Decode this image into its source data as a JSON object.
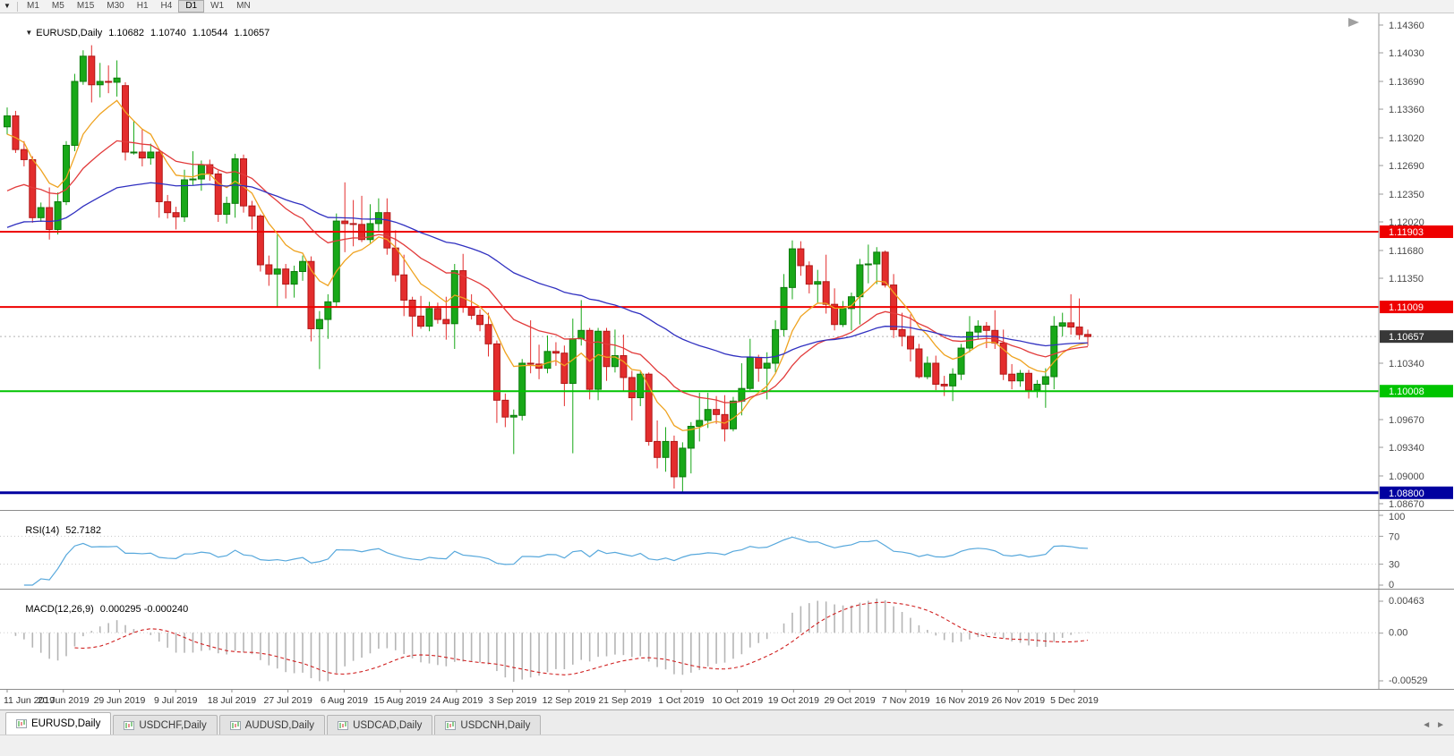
{
  "toolbar": {
    "menu_icon": "▼",
    "timeframes": [
      "M1",
      "M5",
      "M15",
      "M30",
      "H1",
      "H4",
      "D1",
      "W1",
      "MN"
    ],
    "active_timeframe": "D1"
  },
  "chart_header": {
    "dropdown_icon": "▼",
    "symbol_period": "EURUSD,Daily",
    "open": "1.10682",
    "high": "1.10740",
    "low": "1.10544",
    "close": "1.10657"
  },
  "price_axis": {
    "ticks": [
      "1.14360",
      "1.14030",
      "1.13690",
      "1.13360",
      "1.13020",
      "1.12690",
      "1.12350",
      "1.12020",
      "1.11680",
      "1.11350",
      "1.10340",
      "1.09670",
      "1.09340",
      "1.09000",
      "1.08670"
    ],
    "badges": [
      {
        "text": "1.11903",
        "value": 1.11903,
        "bg": "#ee0000"
      },
      {
        "text": "1.11009",
        "value": 1.11009,
        "bg": "#ee0000"
      },
      {
        "text": "1.10657",
        "value": 1.10657,
        "bg": "#383838"
      },
      {
        "text": "1.10008",
        "value": 1.10008,
        "bg": "#00c400"
      },
      {
        "text": "1.08800",
        "value": 1.088,
        "bg": "#0000a0"
      }
    ]
  },
  "chart_data": {
    "type": "candlestick",
    "symbol": "EURUSD",
    "timeframe": "Daily",
    "ylim": [
      1.0867,
      1.1436
    ],
    "x_labels": [
      "11 Jun 2019",
      "20 Jun 2019",
      "29 Jun 2019",
      "9 Jul 2019",
      "18 Jul 2019",
      "27 Jul 2019",
      "6 Aug 2019",
      "15 Aug 2019",
      "24 Aug 2019",
      "3 Sep 2019",
      "12 Sep 2019",
      "21 Sep 2019",
      "1 Oct 2019",
      "10 Oct 2019",
      "19 Oct 2019",
      "29 Oct 2019",
      "7 Nov 2019",
      "16 Nov 2019",
      "26 Nov 2019",
      "5 Dec 2019"
    ],
    "candles": [
      [
        1.1315,
        1.1338,
        1.1306,
        1.1328
      ],
      [
        1.1328,
        1.1334,
        1.1284,
        1.1288
      ],
      [
        1.1288,
        1.1298,
        1.1268,
        1.1276
      ],
      [
        1.1276,
        1.128,
        1.1201,
        1.1207
      ],
      [
        1.1207,
        1.1225,
        1.1202,
        1.1219
      ],
      [
        1.1219,
        1.1243,
        1.1181,
        1.1193
      ],
      [
        1.1193,
        1.1237,
        1.1187,
        1.1226
      ],
      [
        1.1226,
        1.1298,
        1.1222,
        1.1293
      ],
      [
        1.1293,
        1.1378,
        1.1286,
        1.1369
      ],
      [
        1.1369,
        1.1406,
        1.1365,
        1.1399
      ],
      [
        1.1399,
        1.1412,
        1.1344,
        1.1365
      ],
      [
        1.1365,
        1.1391,
        1.135,
        1.1369
      ],
      [
        1.1369,
        1.1388,
        1.1355,
        1.1368
      ],
      [
        1.1368,
        1.1394,
        1.1351,
        1.1373
      ],
      [
        1.1364,
        1.1368,
        1.1275,
        1.1285
      ],
      [
        1.1285,
        1.1322,
        1.1282,
        1.1285
      ],
      [
        1.1285,
        1.1312,
        1.1268,
        1.1278
      ],
      [
        1.1278,
        1.1295,
        1.127,
        1.1285
      ],
      [
        1.1285,
        1.1288,
        1.1207,
        1.1226
      ],
      [
        1.1226,
        1.1234,
        1.1206,
        1.1213
      ],
      [
        1.1213,
        1.122,
        1.1193,
        1.1208
      ],
      [
        1.1208,
        1.1264,
        1.1202,
        1.1252
      ],
      [
        1.1252,
        1.1286,
        1.1246,
        1.1253
      ],
      [
        1.1253,
        1.1275,
        1.1239,
        1.127
      ],
      [
        1.127,
        1.1276,
        1.1251,
        1.1259
      ],
      [
        1.1259,
        1.1263,
        1.1202,
        1.1211
      ],
      [
        1.1211,
        1.1232,
        1.12,
        1.1224
      ],
      [
        1.1224,
        1.1283,
        1.1207,
        1.1277
      ],
      [
        1.1277,
        1.1282,
        1.1213,
        1.1221
      ],
      [
        1.1221,
        1.1227,
        1.1193,
        1.1209
      ],
      [
        1.1209,
        1.1211,
        1.1143,
        1.1151
      ],
      [
        1.1151,
        1.1162,
        1.1126,
        1.114
      ],
      [
        1.114,
        1.1187,
        1.1101,
        1.1146
      ],
      [
        1.1146,
        1.1152,
        1.1111,
        1.1128
      ],
      [
        1.1128,
        1.115,
        1.1112,
        1.1143
      ],
      [
        1.1143,
        1.1162,
        1.1132,
        1.1155
      ],
      [
        1.1155,
        1.1161,
        1.106,
        1.1075
      ],
      [
        1.1075,
        1.1096,
        1.1027,
        1.1086
      ],
      [
        1.1086,
        1.1116,
        1.1063,
        1.1107
      ],
      [
        1.1107,
        1.1212,
        1.1101,
        1.1203
      ],
      [
        1.1203,
        1.1249,
        1.1166,
        1.12
      ],
      [
        1.12,
        1.1228,
        1.1173,
        1.1199
      ],
      [
        1.1199,
        1.1233,
        1.1178,
        1.1181
      ],
      [
        1.1181,
        1.1223,
        1.1177,
        1.12
      ],
      [
        1.12,
        1.123,
        1.119,
        1.1213
      ],
      [
        1.1213,
        1.123,
        1.1163,
        1.1171
      ],
      [
        1.1171,
        1.1192,
        1.1131,
        1.1139
      ],
      [
        1.1139,
        1.1163,
        1.109,
        1.1109
      ],
      [
        1.1109,
        1.1113,
        1.1066,
        1.109
      ],
      [
        1.109,
        1.1114,
        1.1075,
        1.1078
      ],
      [
        1.1078,
        1.1107,
        1.1072,
        1.1099
      ],
      [
        1.1099,
        1.1106,
        1.1081,
        1.1086
      ],
      [
        1.1086,
        1.1113,
        1.1062,
        1.1081
      ],
      [
        1.1081,
        1.1152,
        1.1051,
        1.1144
      ],
      [
        1.1144,
        1.1164,
        1.1094,
        1.1101
      ],
      [
        1.1101,
        1.1116,
        1.1086,
        1.1091
      ],
      [
        1.1091,
        1.1098,
        1.1072,
        1.108
      ],
      [
        1.108,
        1.1094,
        1.1042,
        1.1057
      ],
      [
        1.1057,
        1.1061,
        1.0963,
        1.099
      ],
      [
        1.099,
        1.0998,
        1.0958,
        1.097
      ],
      [
        1.097,
        1.0979,
        1.0926,
        1.0972
      ],
      [
        1.0972,
        1.1039,
        1.0966,
        1.1034
      ],
      [
        1.1034,
        1.1085,
        1.1022,
        1.1033
      ],
      [
        1.1033,
        1.1056,
        1.1015,
        1.1028
      ],
      [
        1.1028,
        1.1067,
        1.1022,
        1.1048
      ],
      [
        1.1048,
        1.1059,
        1.1031,
        1.1046
      ],
      [
        1.1046,
        1.1055,
        1.0983,
        1.101
      ],
      [
        1.101,
        1.1087,
        1.0927,
        1.1063
      ],
      [
        1.1063,
        1.1109,
        1.1055,
        1.1073
      ],
      [
        1.1073,
        1.1076,
        1.0991,
        1.1003
      ],
      [
        1.1003,
        1.1076,
        1.099,
        1.1072
      ],
      [
        1.1072,
        1.1076,
        1.1013,
        1.103
      ],
      [
        1.103,
        1.1074,
        1.1023,
        1.1043
      ],
      [
        1.1043,
        1.1068,
        1.1,
        1.1017
      ],
      [
        1.1017,
        1.1025,
        1.0966,
        1.0993
      ],
      [
        1.0993,
        1.1024,
        1.0983,
        1.1021
      ],
      [
        1.1021,
        1.1023,
        1.0936,
        1.0941
      ],
      [
        1.0941,
        1.0966,
        1.0909,
        1.0922
      ],
      [
        1.0922,
        1.0958,
        1.0905,
        1.0941
      ],
      [
        1.0941,
        1.0948,
        1.0885,
        1.0899
      ],
      [
        1.0899,
        1.094,
        1.0879,
        1.0933
      ],
      [
        1.0933,
        1.0964,
        1.0903,
        1.0959
      ],
      [
        1.0959,
        1.0999,
        1.0941,
        1.0966
      ],
      [
        1.0966,
        1.0999,
        1.0957,
        1.0979
      ],
      [
        1.0979,
        1.0995,
        1.0962,
        1.0973
      ],
      [
        1.0973,
        1.0996,
        1.0941,
        1.0956
      ],
      [
        1.0956,
        1.0994,
        1.0953,
        1.0989
      ],
      [
        1.0989,
        1.1034,
        1.0972,
        1.1004
      ],
      [
        1.1004,
        1.1063,
        1.1002,
        1.1041
      ],
      [
        1.1041,
        1.1044,
        1.1012,
        1.1028
      ],
      [
        1.1028,
        1.1047,
        1.0991,
        1.1034
      ],
      [
        1.1034,
        1.1085,
        1.1023,
        1.1074
      ],
      [
        1.1074,
        1.114,
        1.1066,
        1.1124
      ],
      [
        1.1124,
        1.118,
        1.111,
        1.117
      ],
      [
        1.117,
        1.1179,
        1.1138,
        1.115
      ],
      [
        1.115,
        1.1155,
        1.1117,
        1.1128
      ],
      [
        1.1128,
        1.1145,
        1.1106,
        1.1131
      ],
      [
        1.1131,
        1.1163,
        1.1093,
        1.1104
      ],
      [
        1.1104,
        1.1123,
        1.1073,
        1.108
      ],
      [
        1.108,
        1.1108,
        1.1077,
        1.1099
      ],
      [
        1.1099,
        1.1118,
        1.1073,
        1.1113
      ],
      [
        1.1113,
        1.1158,
        1.108,
        1.1151
      ],
      [
        1.1151,
        1.1175,
        1.1129,
        1.1152
      ],
      [
        1.1152,
        1.1172,
        1.1128,
        1.1166
      ],
      [
        1.1166,
        1.1168,
        1.1124,
        1.1127
      ],
      [
        1.1127,
        1.114,
        1.1064,
        1.1074
      ],
      [
        1.1074,
        1.1094,
        1.1054,
        1.1066
      ],
      [
        1.1066,
        1.1092,
        1.1036,
        1.1051
      ],
      [
        1.1051,
        1.1057,
        1.1016,
        1.1018
      ],
      [
        1.1018,
        1.1042,
        1.1015,
        1.1034
      ],
      [
        1.1034,
        1.1043,
        1.1002,
        1.1009
      ],
      [
        1.1009,
        1.1019,
        1.0995,
        1.1007
      ],
      [
        1.1007,
        1.1028,
        1.0989,
        1.1021
      ],
      [
        1.1021,
        1.1057,
        1.1014,
        1.1052
      ],
      [
        1.1052,
        1.109,
        1.1047,
        1.1071
      ],
      [
        1.1071,
        1.1085,
        1.1062,
        1.1078
      ],
      [
        1.1078,
        1.1083,
        1.1052,
        1.1073
      ],
      [
        1.1073,
        1.1097,
        1.1051,
        1.1058
      ],
      [
        1.1058,
        1.1074,
        1.1014,
        1.1021
      ],
      [
        1.1021,
        1.1033,
        1.1003,
        1.1013
      ],
      [
        1.1013,
        1.1026,
        1.1006,
        1.1022
      ],
      [
        1.1022,
        1.1026,
        1.0992,
        1.1002
      ],
      [
        1.1002,
        1.1014,
        1.0993,
        1.1009
      ],
      [
        1.1009,
        1.1028,
        1.0981,
        1.1018
      ],
      [
        1.1018,
        1.109,
        1.1003,
        1.1078
      ],
      [
        1.1078,
        1.1094,
        1.1066,
        1.1082
      ],
      [
        1.1082,
        1.1116,
        1.1068,
        1.1077
      ],
      [
        1.1077,
        1.1111,
        1.1062,
        1.1068
      ],
      [
        1.10682,
        1.1074,
        1.10544,
        1.10657
      ]
    ],
    "up_color": "#18a818",
    "down_color": "#e32d2d",
    "moving_averages": [
      {
        "period": 8,
        "method": "ema",
        "color": "#efa320",
        "seed": 1.13
      },
      {
        "period": 21,
        "method": "ema",
        "color": "#e23b3b",
        "seed": 1.123
      },
      {
        "period": 50,
        "method": "ema",
        "color": "#3030c0",
        "seed": 1.119
      }
    ],
    "hlines": [
      {
        "value": 1.11903,
        "color": "#ee0000",
        "width": 2
      },
      {
        "value": 1.11009,
        "color": "#ee0000",
        "width": 2
      },
      {
        "value": 1.10008,
        "color": "#00c400",
        "width": 2
      },
      {
        "value": 1.088,
        "color": "#0000a0",
        "width": 3
      }
    ],
    "bid_line": {
      "value": 1.10657,
      "color": "#b4b4b4"
    }
  },
  "rsi": {
    "name": "RSI(14)",
    "value": "52.7182",
    "period": 14,
    "axis_labels": [
      "100",
      "70",
      "30",
      "0"
    ],
    "levels": [
      70,
      30
    ],
    "color": "#57a8dc"
  },
  "macd": {
    "name": "MACD(12,26,9)",
    "values": "0.000295 -0.000240",
    "fast": 12,
    "slow": 26,
    "signal": 9,
    "axis_labels": [
      "0.00463",
      "0.00",
      "-0.00529"
    ],
    "histogram_color": "#b5b5b5",
    "signal_color": "#d02020"
  },
  "tabs": {
    "items": [
      "EURUSD,Daily",
      "USDCHF,Daily",
      "AUDUSD,Daily",
      "USDCAD,Daily",
      "USDCNH,Daily"
    ],
    "active": "EURUSD,Daily",
    "scroll_left_icon": "◄",
    "scroll_right_icon": "►"
  }
}
